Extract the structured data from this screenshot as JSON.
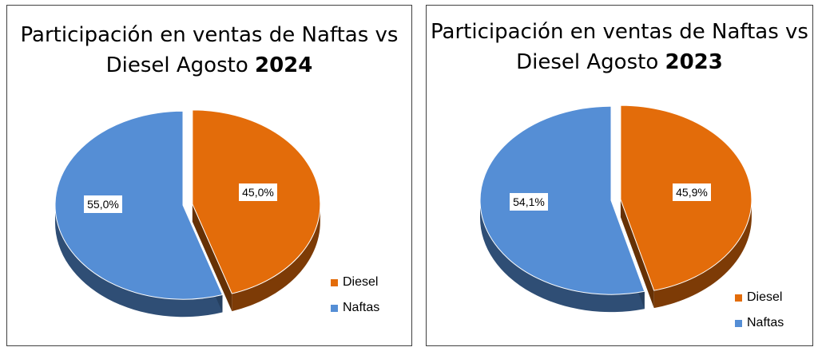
{
  "chart_data": [
    {
      "type": "pie",
      "title": "Participación en ventas de Naftas vs Diesel Agosto",
      "title_year": "2024",
      "categories": [
        "Diesel",
        "Naftas"
      ],
      "values": [
        45.0,
        55.0
      ],
      "data_labels": [
        "45,0%",
        "55,0%"
      ],
      "colors": [
        "#E36C0A",
        "#558ED5"
      ],
      "legend_position": "bottom-right"
    },
    {
      "type": "pie",
      "title": "Participación en ventas de Naftas vs Diesel Agosto",
      "title_year": "2023",
      "categories": [
        "Diesel",
        "Naftas"
      ],
      "values": [
        45.9,
        54.1
      ],
      "data_labels": [
        "45,9%",
        "54,1%"
      ],
      "colors": [
        "#E36C0A",
        "#558ED5"
      ],
      "legend_position": "bottom-right"
    }
  ]
}
